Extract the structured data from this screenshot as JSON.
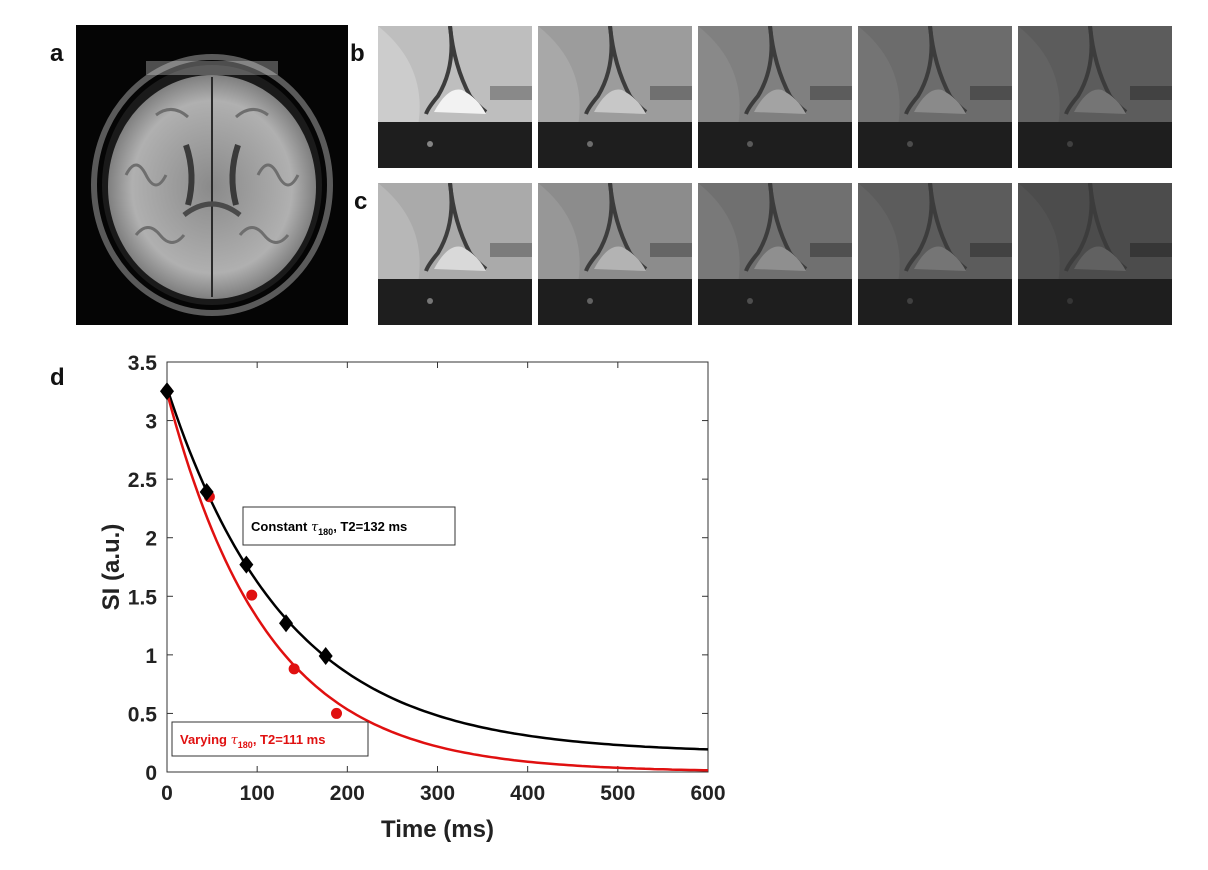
{
  "panels": {
    "a": "a",
    "b": "b",
    "c": "c",
    "d": "d"
  },
  "image_strips": {
    "b_levels": [
      0.95,
      0.78,
      0.64,
      0.54,
      0.46
    ],
    "c_levels": [
      0.85,
      0.7,
      0.56,
      0.46,
      0.38
    ]
  },
  "chart_data": {
    "type": "scatter",
    "xlabel": "Time (ms)",
    "ylabel": "SI (a.u.)",
    "xlim": [
      0,
      600
    ],
    "ylim": [
      0,
      3.5
    ],
    "xticks": [
      "0",
      "100",
      "200",
      "300",
      "400",
      "500",
      "600"
    ],
    "yticks": [
      "0",
      "0.5",
      "1",
      "1.5",
      "2",
      "2.5",
      "3",
      "3.5"
    ],
    "grid": false,
    "series": [
      {
        "name": "Constant τ180, T2=132 ms",
        "legend_main": "Constant ",
        "legend_tau": "τ",
        "legend_sub": "180",
        "legend_tail": ", T2=132 ms",
        "color": "#000000",
        "marker": "diamond",
        "points": [
          [
            0,
            3.25
          ],
          [
            44,
            2.39
          ],
          [
            88,
            1.77
          ],
          [
            132,
            1.27
          ],
          [
            176,
            0.99
          ]
        ],
        "fit": {
          "a": 3.12,
          "t2": 132,
          "c": 0.16
        }
      },
      {
        "name": "Varying τ180, T2=111 ms",
        "legend_main": "Varying ",
        "legend_tau": "τ",
        "legend_sub": "180",
        "legend_tail": ", T2=111 ms",
        "color": "#e01010",
        "marker": "circle",
        "points": [
          [
            0,
            3.25
          ],
          [
            47,
            2.35
          ],
          [
            94,
            1.51
          ],
          [
            141,
            0.88
          ],
          [
            188,
            0.5
          ]
        ],
        "fit": {
          "a": 3.24,
          "t2": 111,
          "c": 0.0
        }
      }
    ]
  }
}
